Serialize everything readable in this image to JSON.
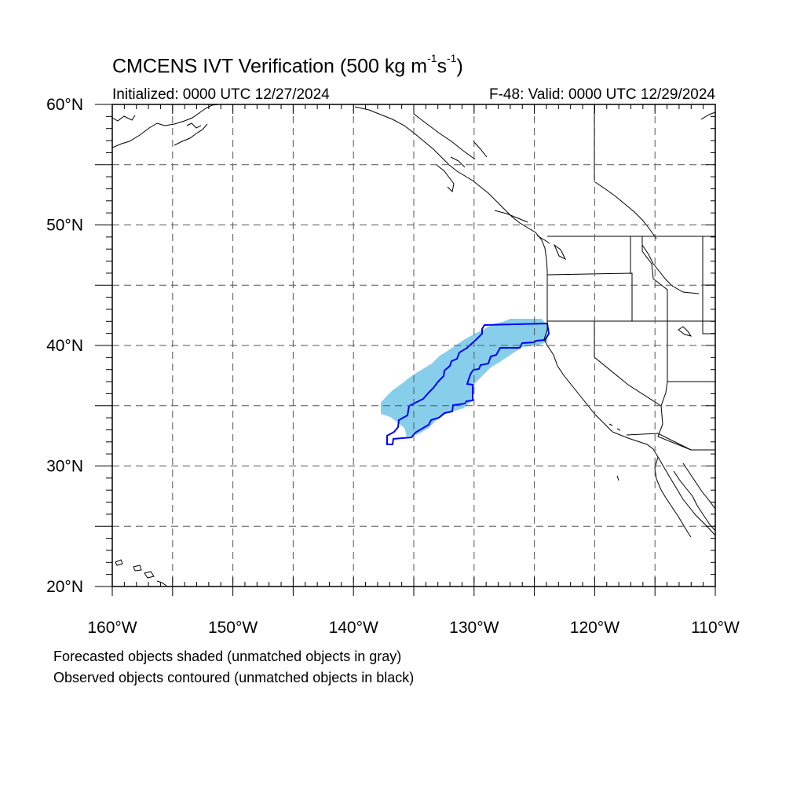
{
  "title": {
    "prefix": "CMCENS IVT Verification (500 kg m",
    "sup1": "-1",
    "mid": "s",
    "sup2": "-1",
    "suffix": ")"
  },
  "initialized": "Initialized: 0000 UTC 12/27/2024",
  "valid": "F-48: Valid: 0000 UTC 12/29/2024",
  "footnotes": [
    "Forecasted objects shaded (unmatched objects in gray)",
    "Observed objects contoured (unmatched objects in black)"
  ],
  "map": {
    "lon_range": [
      -160,
      -110
    ],
    "lat_range": [
      20,
      60
    ],
    "lon_labels": [
      "160°W",
      "150°W",
      "140°W",
      "130°W",
      "120°W",
      "110°W"
    ],
    "lat_labels": [
      "60°N",
      "50°N",
      "40°N",
      "30°N",
      "20°N"
    ],
    "forecast_color": "#87ceeb",
    "observed_color": "#0000ff",
    "grid_style": "dashed"
  }
}
